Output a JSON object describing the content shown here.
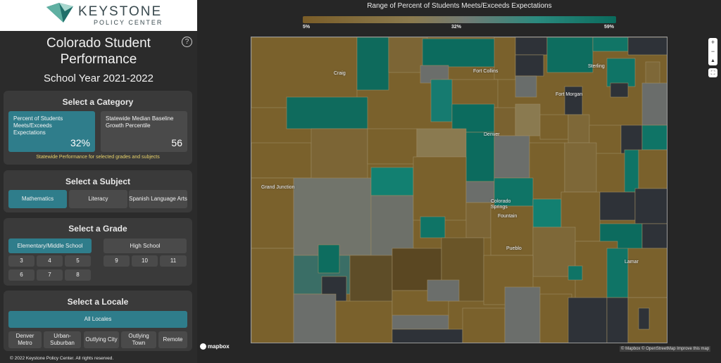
{
  "header": {
    "logo_name": "KEYSTONE",
    "logo_sub": "POLICY CENTER",
    "app_title": "Colorado Student Performance",
    "school_year": "School Year 2021-2022",
    "help_icon": "?"
  },
  "category": {
    "title": "Select a Category",
    "cards": [
      {
        "label": "Percent of Students Meets/Exceeds Expectations",
        "value": "32%",
        "active": true
      },
      {
        "label": "Statewide Median Baseline Growth Percentile",
        "value": "56",
        "active": false
      }
    ],
    "note": "Statewide Performance for selected grades and subjects"
  },
  "subject": {
    "title": "Select a Subject",
    "options": [
      "Mathematics",
      "Literacy",
      "Spanish Language Arts"
    ],
    "selected": "Mathematics"
  },
  "grade": {
    "title": "Select a Grade",
    "groups": [
      "Elementary/Middle School",
      "High School"
    ],
    "selected": "Elementary/Middle School",
    "elem_grades": [
      "3",
      "4",
      "5",
      "6",
      "7",
      "8"
    ],
    "high_grades": [
      "9",
      "10",
      "11"
    ]
  },
  "locale": {
    "title": "Select a Locale",
    "all_label": "All Locales",
    "options": [
      "Denver Metro",
      "Urban-Suburban",
      "Outlying City",
      "Outlying Town",
      "Remote"
    ]
  },
  "legend": {
    "title": "Range of Percent of Students Meets/Exceeds Expectations",
    "min": "5%",
    "mid": "32%",
    "max": "59%"
  },
  "map": {
    "cities": [
      "Craig",
      "Fort Collins",
      "Sterling",
      "Fort Morgan",
      "Denver",
      "Grand Junction",
      "Colorado Springs",
      "Fountain",
      "Pueblo",
      "Lamar"
    ],
    "controls": [
      "+",
      "−",
      "▲",
      "⛶"
    ],
    "logo": "mapbox",
    "attribution": "© Mapbox © OpenStreetMap Improve this map"
  },
  "footer": "© 2022 Keystone Policy Center. All rights reserved.",
  "colors": {
    "accent": "#2f7d8b",
    "low": "#7a5d28",
    "high": "#0a6a5c",
    "nodata": "#2e3238"
  }
}
